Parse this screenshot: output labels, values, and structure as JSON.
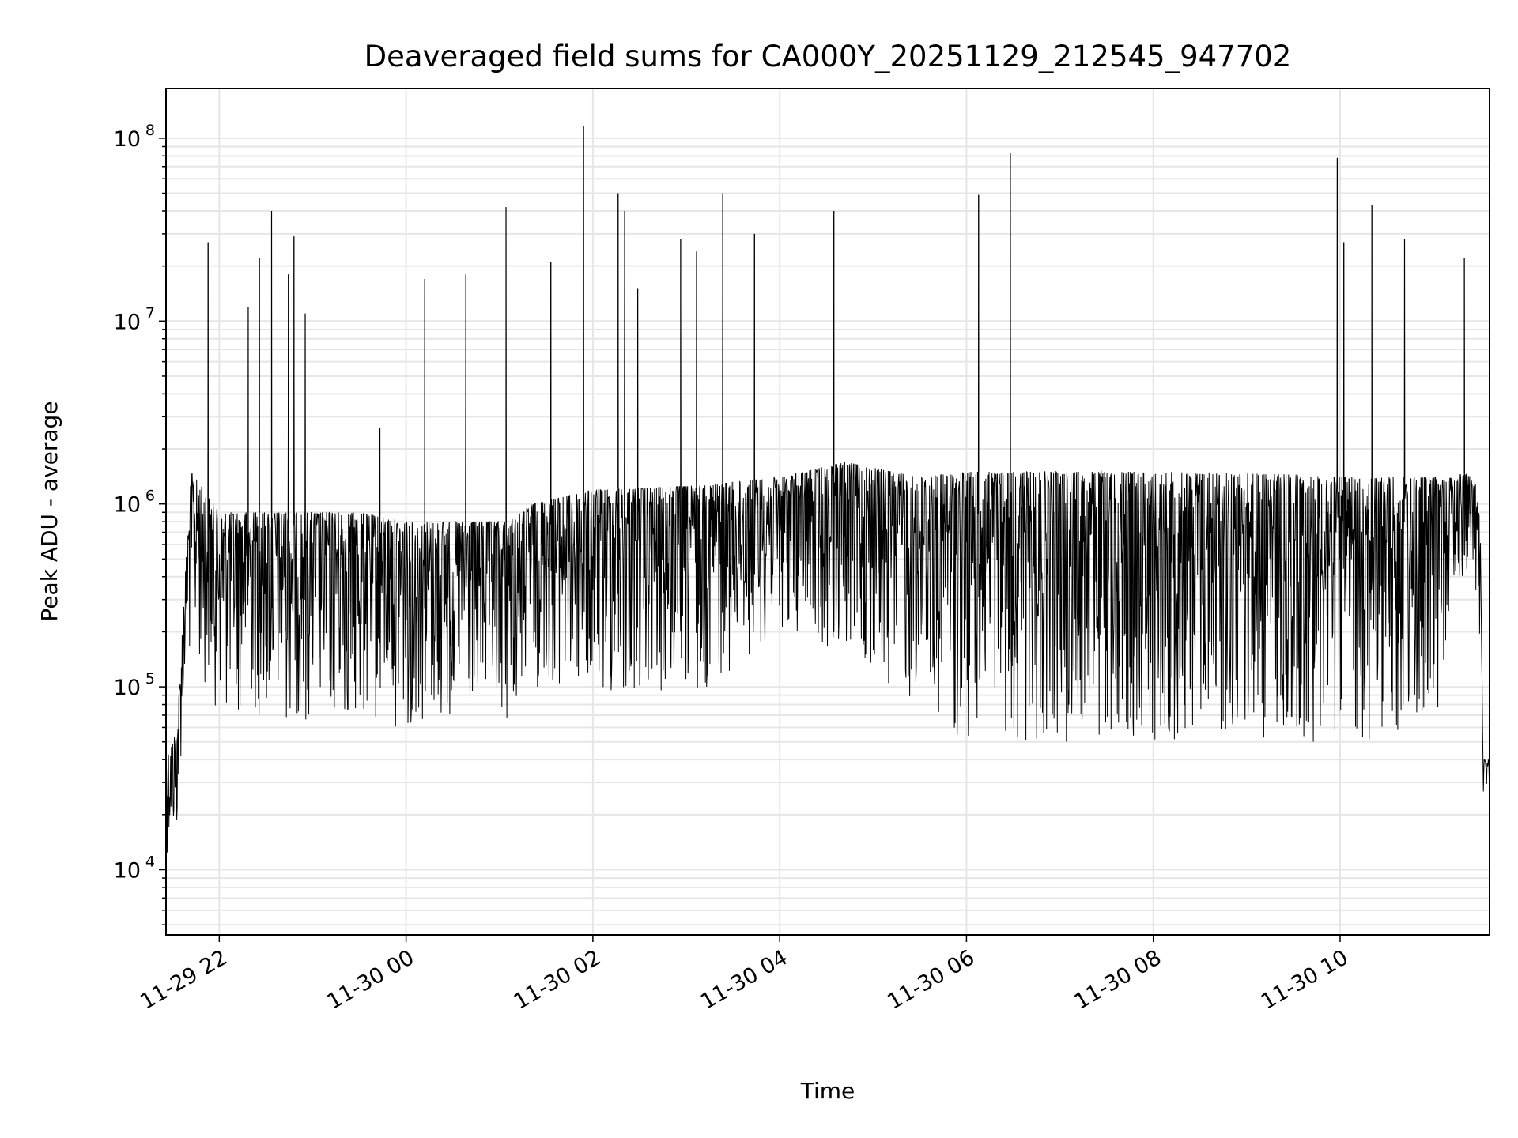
{
  "chart_data": {
    "type": "line",
    "title": "Deaveraged field sums for CA000Y_20251129_212545_947702",
    "xlabel": "Time",
    "ylabel": "Peak ADU - average",
    "yscale": "log",
    "ylim": [
      4400,
      187000000
    ],
    "xlim_hours_since_11-29_00:00": [
      21.43,
      35.6
    ],
    "grid": true,
    "x_ticks": [
      {
        "t": 22,
        "label": "11-29 22"
      },
      {
        "t": 24,
        "label": "11-30 00"
      },
      {
        "t": 26,
        "label": "11-30 02"
      },
      {
        "t": 28,
        "label": "11-30 04"
      },
      {
        "t": 30,
        "label": "11-30 06"
      },
      {
        "t": 32,
        "label": "11-30 08"
      },
      {
        "t": 34,
        "label": "11-30 10"
      }
    ],
    "y_ticks": [
      {
        "exp": 4,
        "base": "10",
        "sup": "4"
      },
      {
        "exp": 5,
        "base": "10",
        "sup": "5"
      },
      {
        "exp": 6,
        "base": "10",
        "sup": "6"
      },
      {
        "exp": 7,
        "base": "10",
        "sup": "7"
      },
      {
        "exp": 8,
        "base": "10",
        "sup": "8"
      }
    ],
    "series_color": "#000000",
    "envelope": {
      "t": [
        21.43,
        21.55,
        21.62,
        21.7,
        22.0,
        23.5,
        24.0,
        25.1,
        25.35,
        26.0,
        27.0,
        28.0,
        28.7,
        29.5,
        30.0,
        31.0,
        32.0,
        33.5,
        34.0,
        35.0,
        35.2,
        35.35,
        35.45,
        35.5,
        35.53,
        35.6
      ],
      "upper": [
        40000,
        60000,
        300000,
        1500000,
        900000,
        900000,
        800000,
        800000,
        1000000,
        1200000,
        1250000,
        1400000,
        1700000,
        1400000,
        1500000,
        1500000,
        1500000,
        1450000,
        1400000,
        1400000,
        1400000,
        1500000,
        1300000,
        800000,
        40000,
        40000
      ],
      "lower": [
        12000,
        15000,
        80000,
        150000,
        70000,
        60000,
        60000,
        60000,
        100000,
        80000,
        80000,
        200000,
        150000,
        70000,
        50000,
        50000,
        50000,
        50000,
        50000,
        50000,
        300000,
        400000,
        300000,
        150000,
        25000,
        28000
      ]
    },
    "spikes": [
      {
        "t": 21.88,
        "value": 27000000
      },
      {
        "t": 22.31,
        "value": 12000000
      },
      {
        "t": 22.43,
        "value": 22000000
      },
      {
        "t": 22.56,
        "value": 40000000
      },
      {
        "t": 22.74,
        "value": 18000000
      },
      {
        "t": 22.8,
        "value": 29000000
      },
      {
        "t": 22.92,
        "value": 11000000
      },
      {
        "t": 23.72,
        "value": 2600000
      },
      {
        "t": 24.2,
        "value": 17000000
      },
      {
        "t": 24.64,
        "value": 18000000
      },
      {
        "t": 25.07,
        "value": 42000000
      },
      {
        "t": 25.55,
        "value": 21000000
      },
      {
        "t": 25.9,
        "value": 116000000
      },
      {
        "t": 26.27,
        "value": 50000000
      },
      {
        "t": 26.34,
        "value": 40000000
      },
      {
        "t": 26.48,
        "value": 15000000
      },
      {
        "t": 26.94,
        "value": 28000000
      },
      {
        "t": 27.11,
        "value": 24000000
      },
      {
        "t": 27.39,
        "value": 50000000
      },
      {
        "t": 27.73,
        "value": 30000000
      },
      {
        "t": 28.58,
        "value": 40000000
      },
      {
        "t": 30.13,
        "value": 49000000
      },
      {
        "t": 30.47,
        "value": 83000000
      },
      {
        "t": 33.97,
        "value": 78000000
      },
      {
        "t": 34.04,
        "value": 27000000
      },
      {
        "t": 34.34,
        "value": 43000000
      },
      {
        "t": 34.69,
        "value": 28000000
      },
      {
        "t": 35.33,
        "value": 22000000
      }
    ]
  }
}
